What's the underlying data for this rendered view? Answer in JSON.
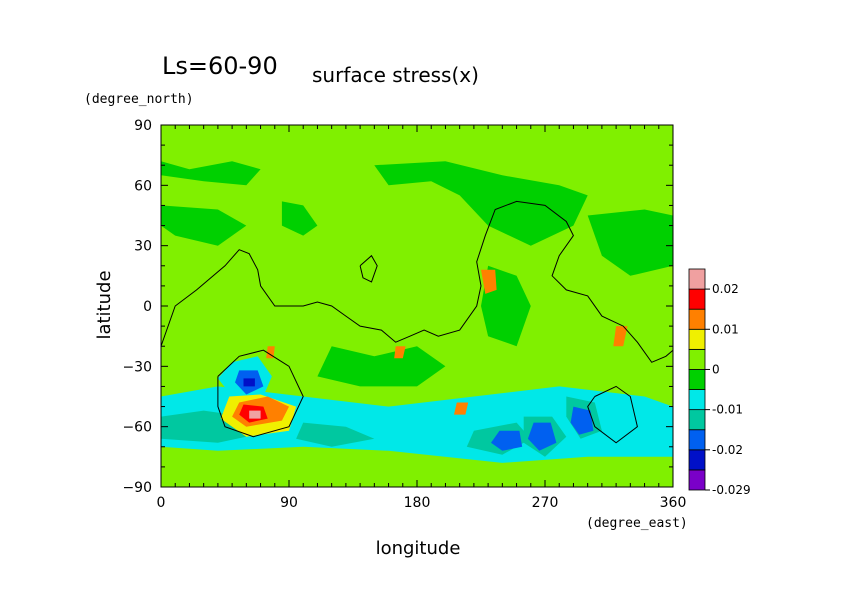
{
  "chart_data": {
    "type": "heatmap",
    "title_prefix": "Ls=60-90",
    "title": "surface stress(x)",
    "xlabel": "longitude",
    "ylabel": "latitude",
    "x_unit": "(degree_east)",
    "y_unit": "(degree_north)",
    "xlim": [
      0,
      360
    ],
    "ylim": [
      -90,
      90
    ],
    "x_ticks": [
      0,
      90,
      180,
      270,
      360
    ],
    "y_ticks": [
      90,
      60,
      30,
      0,
      -30,
      -60,
      -90
    ],
    "x_tick_labels": [
      "0",
      "90",
      "180",
      "270",
      "360"
    ],
    "y_tick_labels": [
      "90",
      "60",
      "30",
      "0",
      "−30",
      "−60",
      "−90"
    ],
    "colorbar": {
      "levels": [
        -0.029,
        -0.025,
        -0.02,
        -0.015,
        -0.01,
        -0.005,
        0,
        0.005,
        0.01,
        0.015,
        0.02,
        0.025
      ],
      "colors": [
        "#7a00c8",
        "#0010c8",
        "#0060f0",
        "#00c8a0",
        "#00e8e8",
        "#00d000",
        "#80f000",
        "#f0f000",
        "#ff8000",
        "#ff0000",
        "#f0a0a0"
      ],
      "labels": [
        "-0.029",
        "-0.02",
        "-0.01",
        "0",
        "0.01",
        "0.02"
      ],
      "label_values": [
        -0.029,
        -0.02,
        -0.01,
        0,
        0.01,
        0.02
      ]
    },
    "background_value": 0.002,
    "regions": [
      {
        "points": [
          [
            0,
            88
          ],
          [
            360,
            88
          ],
          [
            360,
            78
          ],
          [
            300,
            80
          ],
          [
            250,
            82
          ],
          [
            200,
            80
          ],
          [
            150,
            82
          ],
          [
            100,
            80
          ],
          [
            50,
            82
          ],
          [
            0,
            80
          ]
        ],
        "value": 0.0025
      },
      {
        "points": [
          [
            0,
            72
          ],
          [
            20,
            68
          ],
          [
            50,
            72
          ],
          [
            70,
            68
          ],
          [
            60,
            60
          ],
          [
            30,
            62
          ],
          [
            0,
            65
          ]
        ],
        "value": -0.001
      },
      {
        "points": [
          [
            0,
            50
          ],
          [
            40,
            48
          ],
          [
            60,
            40
          ],
          [
            40,
            30
          ],
          [
            10,
            35
          ],
          [
            0,
            40
          ]
        ],
        "value": -0.001
      },
      {
        "points": [
          [
            85,
            52
          ],
          [
            100,
            50
          ],
          [
            110,
            40
          ],
          [
            100,
            35
          ],
          [
            85,
            40
          ]
        ],
        "value": -0.001
      },
      {
        "points": [
          [
            150,
            70
          ],
          [
            200,
            72
          ],
          [
            240,
            65
          ],
          [
            280,
            60
          ],
          [
            300,
            55
          ],
          [
            290,
            40
          ],
          [
            260,
            30
          ],
          [
            230,
            40
          ],
          [
            210,
            55
          ],
          [
            190,
            62
          ],
          [
            160,
            60
          ]
        ],
        "value": -0.001
      },
      {
        "points": [
          [
            300,
            45
          ],
          [
            340,
            48
          ],
          [
            360,
            45
          ],
          [
            360,
            20
          ],
          [
            330,
            15
          ],
          [
            310,
            25
          ]
        ],
        "value": -0.001
      },
      {
        "points": [
          [
            230,
            20
          ],
          [
            250,
            15
          ],
          [
            260,
            0
          ],
          [
            250,
            -20
          ],
          [
            230,
            -15
          ],
          [
            225,
            0
          ]
        ],
        "value": -0.001
      },
      {
        "points": [
          [
            120,
            -20
          ],
          [
            150,
            -25
          ],
          [
            180,
            -20
          ],
          [
            200,
            -30
          ],
          [
            180,
            -40
          ],
          [
            140,
            -40
          ],
          [
            110,
            -35
          ]
        ],
        "value": -0.001
      },
      {
        "points": [
          [
            0,
            -45
          ],
          [
            40,
            -40
          ],
          [
            100,
            -45
          ],
          [
            160,
            -50
          ],
          [
            220,
            -45
          ],
          [
            280,
            -40
          ],
          [
            340,
            -45
          ],
          [
            360,
            -50
          ],
          [
            360,
            -75
          ],
          [
            300,
            -75
          ],
          [
            240,
            -78
          ],
          [
            160,
            -72
          ],
          [
            100,
            -70
          ],
          [
            40,
            -72
          ],
          [
            0,
            -70
          ]
        ],
        "value": -0.006
      },
      {
        "points": [
          [
            0,
            -55
          ],
          [
            30,
            -52
          ],
          [
            60,
            -55
          ],
          [
            80,
            -62
          ],
          [
            40,
            -68
          ],
          [
            0,
            -66
          ]
        ],
        "value": -0.011
      },
      {
        "points": [
          [
            100,
            -58
          ],
          [
            130,
            -60
          ],
          [
            150,
            -66
          ],
          [
            120,
            -70
          ],
          [
            95,
            -66
          ]
        ],
        "value": -0.011
      },
      {
        "points": [
          [
            220,
            -62
          ],
          [
            250,
            -58
          ],
          [
            260,
            -66
          ],
          [
            240,
            -74
          ],
          [
            215,
            -70
          ]
        ],
        "value": -0.011
      },
      {
        "points": [
          [
            255,
            -55
          ],
          [
            275,
            -55
          ],
          [
            285,
            -65
          ],
          [
            270,
            -75
          ],
          [
            255,
            -68
          ]
        ],
        "value": -0.011
      },
      {
        "points": [
          [
            285,
            -45
          ],
          [
            305,
            -48
          ],
          [
            310,
            -62
          ],
          [
            295,
            -66
          ],
          [
            285,
            -55
          ]
        ],
        "value": -0.011
      },
      {
        "points": [
          [
            50,
            -28
          ],
          [
            68,
            -25
          ],
          [
            78,
            -35
          ],
          [
            70,
            -48
          ],
          [
            50,
            -45
          ],
          [
            40,
            -36
          ]
        ],
        "value": -0.007
      },
      {
        "points": [
          [
            48,
            -45
          ],
          [
            70,
            -44
          ],
          [
            95,
            -50
          ],
          [
            90,
            -62
          ],
          [
            60,
            -65
          ],
          [
            42,
            -56
          ]
        ],
        "value": 0.007
      },
      {
        "points": [
          [
            238,
            -62
          ],
          [
            252,
            -62
          ],
          [
            254,
            -70
          ],
          [
            240,
            -72
          ],
          [
            232,
            -68
          ]
        ],
        "value": -0.018
      },
      {
        "points": [
          [
            262,
            -58
          ],
          [
            274,
            -58
          ],
          [
            278,
            -68
          ],
          [
            266,
            -72
          ],
          [
            258,
            -66
          ]
        ],
        "value": -0.018
      },
      {
        "points": [
          [
            290,
            -50
          ],
          [
            302,
            -52
          ],
          [
            304,
            -62
          ],
          [
            294,
            -64
          ],
          [
            288,
            -58
          ]
        ],
        "value": -0.018
      },
      {
        "points": [
          [
            55,
            -32
          ],
          [
            68,
            -32
          ],
          [
            72,
            -40
          ],
          [
            60,
            -44
          ],
          [
            52,
            -38
          ]
        ],
        "value": -0.018
      },
      {
        "points": [
          [
            58,
            -36
          ],
          [
            66,
            -36
          ],
          [
            66,
            -40
          ],
          [
            58,
            -40
          ]
        ],
        "value": -0.022
      },
      {
        "points": [
          [
            225,
            18
          ],
          [
            235,
            18
          ],
          [
            236,
            8
          ],
          [
            228,
            6
          ]
        ],
        "value": 0.012
      },
      {
        "points": [
          [
            320,
            -10
          ],
          [
            328,
            -10
          ],
          [
            325,
            -20
          ],
          [
            318,
            -20
          ]
        ],
        "value": 0.012
      },
      {
        "points": [
          [
            165,
            -20
          ],
          [
            172,
            -20
          ],
          [
            170,
            -26
          ],
          [
            164,
            -26
          ]
        ],
        "value": 0.012
      },
      {
        "points": [
          [
            75,
            -20
          ],
          [
            80,
            -20
          ],
          [
            79,
            -26
          ],
          [
            74,
            -26
          ]
        ],
        "value": 0.012
      },
      {
        "points": [
          [
            208,
            -48
          ],
          [
            216,
            -48
          ],
          [
            214,
            -54
          ],
          [
            206,
            -54
          ]
        ],
        "value": 0.012
      },
      {
        "points": [
          [
            55,
            -48
          ],
          [
            75,
            -45
          ],
          [
            90,
            -50
          ],
          [
            85,
            -57
          ],
          [
            60,
            -60
          ],
          [
            50,
            -55
          ]
        ],
        "value": 0.012
      },
      {
        "points": [
          [
            58,
            -49
          ],
          [
            72,
            -50
          ],
          [
            75,
            -56
          ],
          [
            62,
            -58
          ],
          [
            55,
            -54
          ]
        ],
        "value": 0.018
      },
      {
        "points": [
          [
            62,
            -52
          ],
          [
            70,
            -52
          ],
          [
            70,
            -56
          ],
          [
            62,
            -56
          ]
        ],
        "value": 0.023
      }
    ],
    "contours": [
      {
        "points": [
          [
            0,
            -20
          ],
          [
            10,
            0
          ],
          [
            25,
            8
          ],
          [
            45,
            20
          ],
          [
            55,
            28
          ],
          [
            62,
            26
          ],
          [
            68,
            18
          ],
          [
            70,
            10
          ],
          [
            80,
            0
          ],
          [
            100,
            0
          ],
          [
            110,
            2
          ],
          [
            120,
            0
          ],
          [
            130,
            -5
          ],
          [
            140,
            -10
          ],
          [
            155,
            -12
          ],
          [
            165,
            -18
          ],
          [
            175,
            -15
          ],
          [
            185,
            -12
          ],
          [
            195,
            -15
          ],
          [
            210,
            -12
          ],
          [
            222,
            0
          ],
          [
            225,
            10
          ],
          [
            222,
            22
          ],
          [
            228,
            35
          ],
          [
            235,
            48
          ],
          [
            250,
            52
          ],
          [
            270,
            50
          ],
          [
            285,
            42
          ],
          [
            290,
            35
          ],
          [
            280,
            25
          ],
          [
            275,
            15
          ],
          [
            285,
            8
          ],
          [
            300,
            5
          ],
          [
            310,
            -5
          ],
          [
            325,
            -10
          ],
          [
            335,
            -18
          ],
          [
            345,
            -28
          ],
          [
            355,
            -25
          ],
          [
            360,
            -22
          ]
        ]
      },
      {
        "points": [
          [
            140,
            20
          ],
          [
            148,
            25
          ],
          [
            152,
            20
          ],
          [
            148,
            12
          ],
          [
            142,
            14
          ],
          [
            140,
            20
          ]
        ]
      },
      {
        "points": [
          [
            40,
            -35
          ],
          [
            55,
            -25
          ],
          [
            72,
            -22
          ],
          [
            90,
            -30
          ],
          [
            100,
            -45
          ],
          [
            90,
            -60
          ],
          [
            65,
            -65
          ],
          [
            45,
            -60
          ],
          [
            40,
            -50
          ],
          [
            40,
            -35
          ]
        ]
      },
      {
        "points": [
          [
            305,
            -45
          ],
          [
            320,
            -40
          ],
          [
            330,
            -45
          ],
          [
            335,
            -60
          ],
          [
            320,
            -68
          ],
          [
            305,
            -60
          ],
          [
            300,
            -50
          ],
          [
            305,
            -45
          ]
        ]
      }
    ]
  }
}
